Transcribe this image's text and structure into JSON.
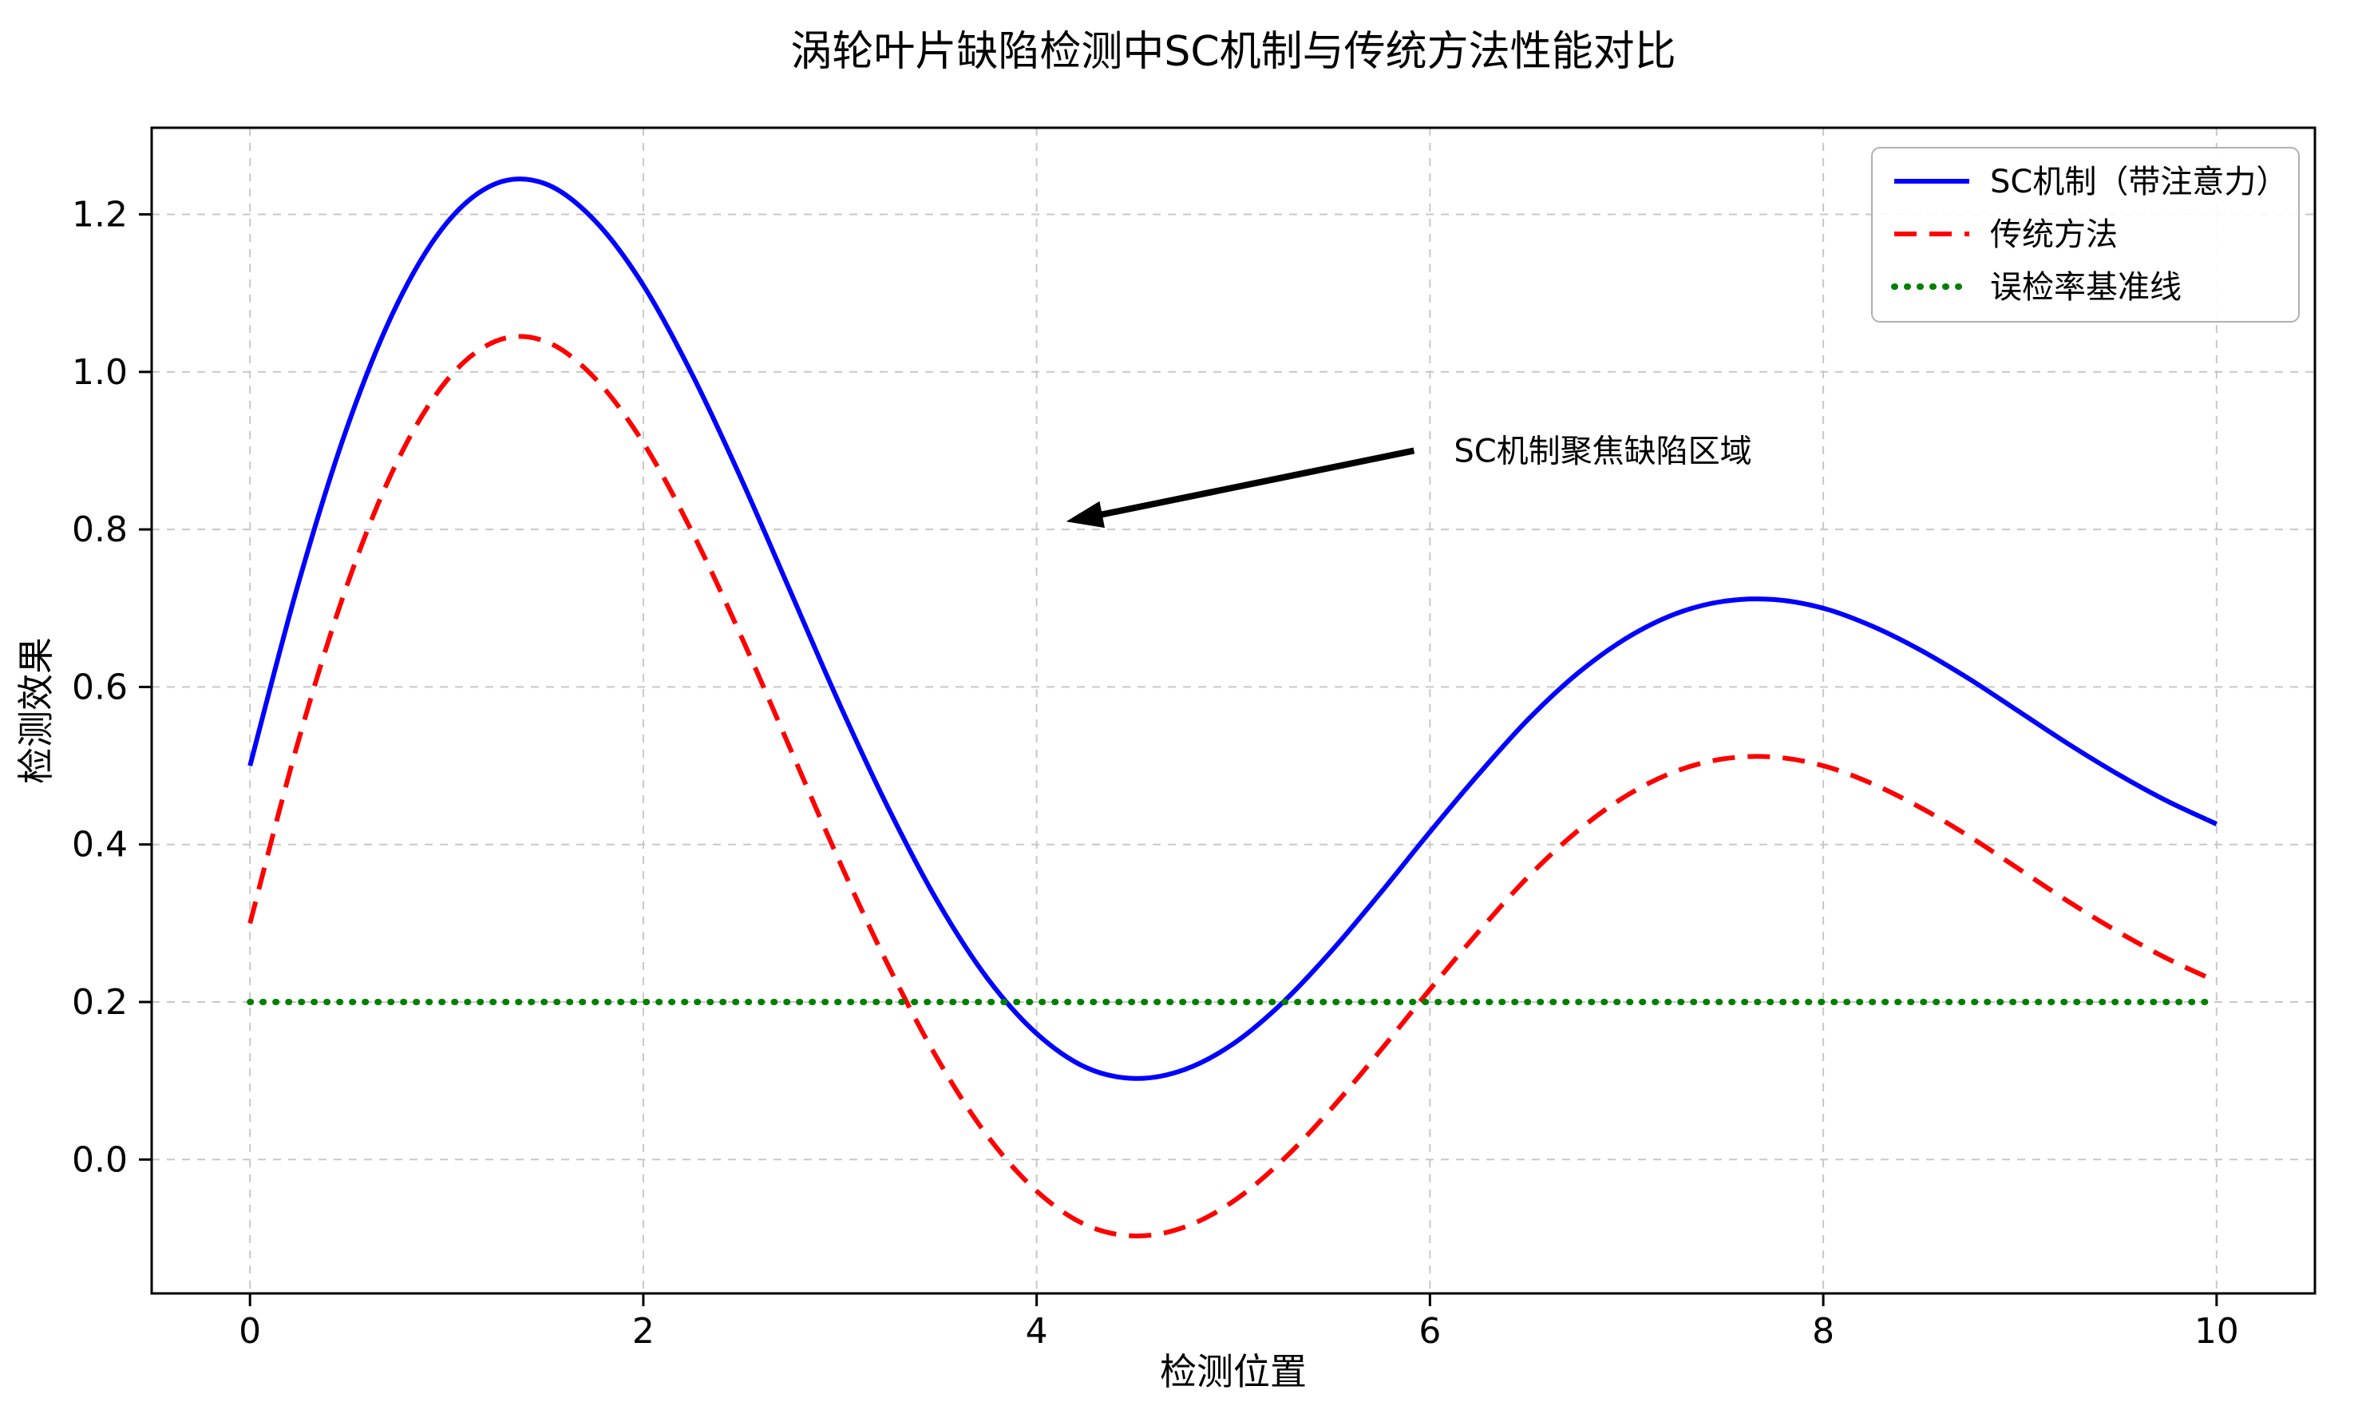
{
  "chart_data": {
    "type": "line",
    "title": "涡轮叶片缺陷检测中SC机制与传统方法性能对比",
    "xlabel": "检测位置",
    "ylabel": "检测效果",
    "xlim": [
      -0.5,
      10.5
    ],
    "ylim": [
      -0.17,
      1.31
    ],
    "xticks": [
      0,
      2,
      4,
      6,
      8,
      10
    ],
    "yticks": [
      0.0,
      0.2,
      0.4,
      0.6,
      0.8,
      1.0,
      1.2
    ],
    "grid": true,
    "grid_style": "dashed",
    "legend_position": "upper right",
    "x": [
      0,
      0.25,
      0.5,
      0.75,
      1,
      1.25,
      1.5,
      1.75,
      2,
      2.25,
      2.5,
      2.75,
      3,
      3.25,
      3.5,
      3.75,
      4,
      4.25,
      4.5,
      4.75,
      5,
      5.25,
      5.5,
      5.75,
      6,
      6.25,
      6.5,
      6.75,
      7,
      7.25,
      7.5,
      7.75,
      8,
      8.25,
      8.5,
      8.75,
      9,
      9.25,
      9.5,
      9.75,
      10
    ],
    "series": [
      {
        "name": "SC机制（带注意力）",
        "color": "#0000ff",
        "style": "solid",
        "values": [
          0.5,
          0.735,
          0.934,
          1.087,
          1.189,
          1.239,
          1.239,
          1.193,
          1.11,
          0.996,
          0.863,
          0.72,
          0.577,
          0.444,
          0.326,
          0.23,
          0.16,
          0.117,
          0.103,
          0.114,
          0.147,
          0.199,
          0.265,
          0.339,
          0.416,
          0.49,
          0.559,
          0.617,
          0.662,
          0.693,
          0.709,
          0.711,
          0.7,
          0.677,
          0.646,
          0.609,
          0.568,
          0.527,
          0.489,
          0.455,
          0.426
        ]
      },
      {
        "name": "传统方法",
        "color": "#ff0000",
        "style": "dashed",
        "values": [
          0.3,
          0.535,
          0.734,
          0.887,
          0.989,
          1.039,
          1.039,
          0.993,
          0.91,
          0.796,
          0.663,
          0.52,
          0.377,
          0.244,
          0.126,
          0.03,
          -0.04,
          -0.083,
          -0.097,
          -0.086,
          -0.053,
          -0.001,
          0.065,
          0.139,
          0.216,
          0.29,
          0.359,
          0.417,
          0.462,
          0.493,
          0.509,
          0.511,
          0.5,
          0.477,
          0.446,
          0.409,
          0.368,
          0.327,
          0.289,
          0.255,
          0.226
        ]
      },
      {
        "name": "误检率基准线",
        "color": "#008000",
        "style": "dotted",
        "values": [
          0.2,
          0.2,
          0.2,
          0.2,
          0.2,
          0.2,
          0.2,
          0.2,
          0.2,
          0.2,
          0.2,
          0.2,
          0.2,
          0.2,
          0.2,
          0.2,
          0.2,
          0.2,
          0.2,
          0.2,
          0.2,
          0.2,
          0.2,
          0.2,
          0.2,
          0.2,
          0.2,
          0.2,
          0.2,
          0.2,
          0.2,
          0.2,
          0.2,
          0.2,
          0.2,
          0.2,
          0.2,
          0.2,
          0.2,
          0.2,
          0.2
        ]
      }
    ],
    "annotation": {
      "text": "SC机制聚焦缺陷区域",
      "xy": [
        4.15,
        0.81
      ],
      "xytext": [
        6.0,
        0.9
      ]
    },
    "colors": {
      "sc_line": "#0000ff",
      "traditional_line": "#ff0000",
      "baseline": "#008000",
      "grid": "#c8c8c8",
      "axis": "#000000"
    }
  }
}
